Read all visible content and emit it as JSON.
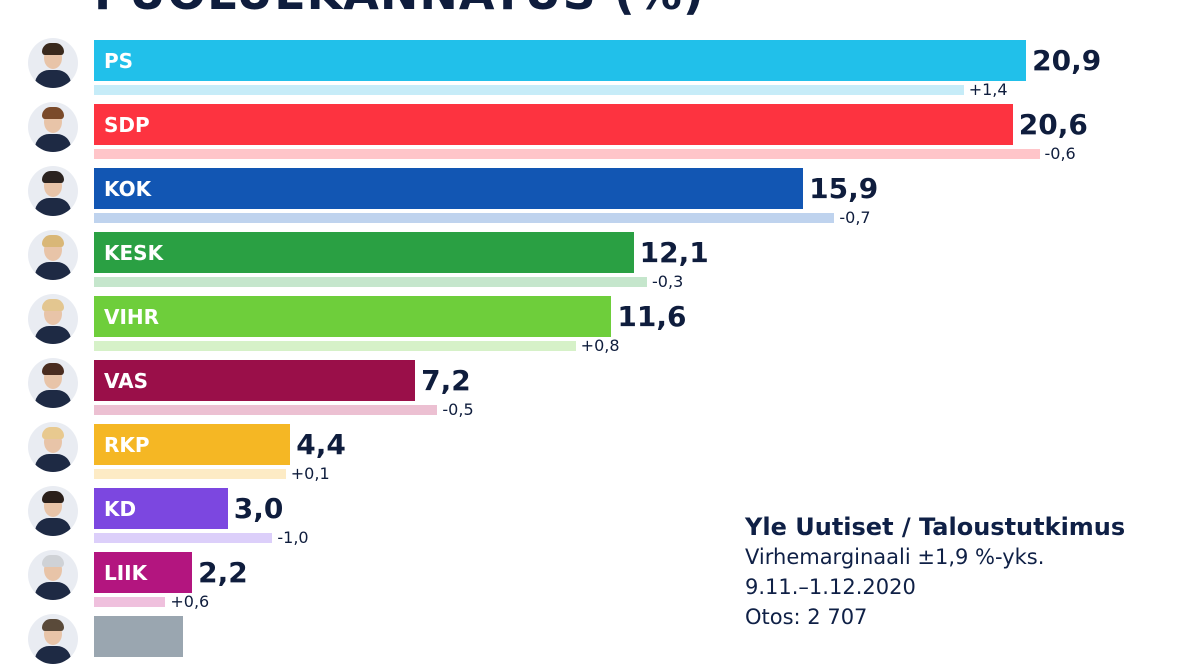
{
  "title": "PUOLUEKANNATUS (%)",
  "chart_data": {
    "type": "bar",
    "orientation": "horizontal",
    "title": "PUOLUEKANNATUS (%)",
    "xlim": [
      0,
      21.5
    ],
    "categories": [
      "PS",
      "SDP",
      "KOK",
      "KESK",
      "VIHR",
      "VAS",
      "RKP",
      "KD",
      "LIIK",
      ""
    ],
    "values": [
      20.9,
      20.6,
      15.9,
      12.1,
      11.6,
      7.2,
      4.4,
      3.0,
      2.2,
      2.0
    ],
    "value_labels": [
      "20,9",
      "20,6",
      "15,9",
      "12,1",
      "11,6",
      "7,2",
      "4,4",
      "3,0",
      "2,2",
      ""
    ],
    "changes": [
      1.4,
      -0.6,
      -0.7,
      -0.3,
      0.8,
      -0.5,
      0.1,
      -1.0,
      0.6,
      null
    ],
    "change_labels": [
      "+1,4",
      "-0,6",
      "-0,7",
      "-0,3",
      "+0,8",
      "-0,5",
      "+0,1",
      "-1,0",
      "+0,6",
      ""
    ],
    "colors": [
      "#21c0ea",
      "#fd3340",
      "#1256b3",
      "#2aa043",
      "#6ece3b",
      "#9a0f49",
      "#f5b724",
      "#7c47e0",
      "#b3157f",
      "#9aa6b0"
    ],
    "light_colors": [
      "#c6ecf8",
      "#ffc5c9",
      "#bfd3ee",
      "#c5e6cc",
      "#d6f1c8",
      "#ecc0d2",
      "#fdebc5",
      "#dccffa",
      "#efc0dd",
      "#dde2e6"
    ],
    "grid": false,
    "legend": "none"
  },
  "source": {
    "title": "Yle Uutiset / Taloustutkimus",
    "margin": "Virhemarginaali ±1,9 %-yks.",
    "period": "9.11.–1.12.2020",
    "sample": "Otos: 2 707"
  }
}
